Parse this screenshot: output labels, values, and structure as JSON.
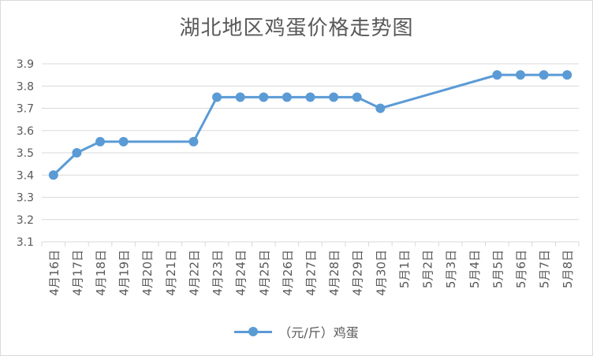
{
  "chart_data": {
    "type": "line",
    "title": "湖北地区鸡蛋价格走势图",
    "xlabel": "",
    "ylabel": "",
    "ylim": [
      3.1,
      3.9
    ],
    "yticks": [
      "3.1",
      "3.2",
      "3.3",
      "3.4",
      "3.5",
      "3.6",
      "3.7",
      "3.8",
      "3.9"
    ],
    "grid": true,
    "legend_position": "bottom",
    "categories": [
      "4月16日",
      "4月17日",
      "4月18日",
      "4月19日",
      "4月20日",
      "4月21日",
      "4月22日",
      "4月23日",
      "4月24日",
      "4月25日",
      "4月26日",
      "4月27日",
      "4月28日",
      "4月29日",
      "4月30日",
      "5月1日",
      "5月2日",
      "5月3日",
      "5月4日",
      "5月5日",
      "5月6日",
      "5月7日",
      "5月8日"
    ],
    "series": [
      {
        "name": "（元/斤）鸡蛋",
        "color": "#5b9bd5",
        "values": [
          3.4,
          3.5,
          3.55,
          3.55,
          null,
          null,
          3.55,
          3.75,
          3.75,
          3.75,
          3.75,
          3.75,
          3.75,
          3.75,
          3.7,
          null,
          null,
          null,
          null,
          3.85,
          3.85,
          3.85,
          3.85
        ]
      }
    ]
  }
}
